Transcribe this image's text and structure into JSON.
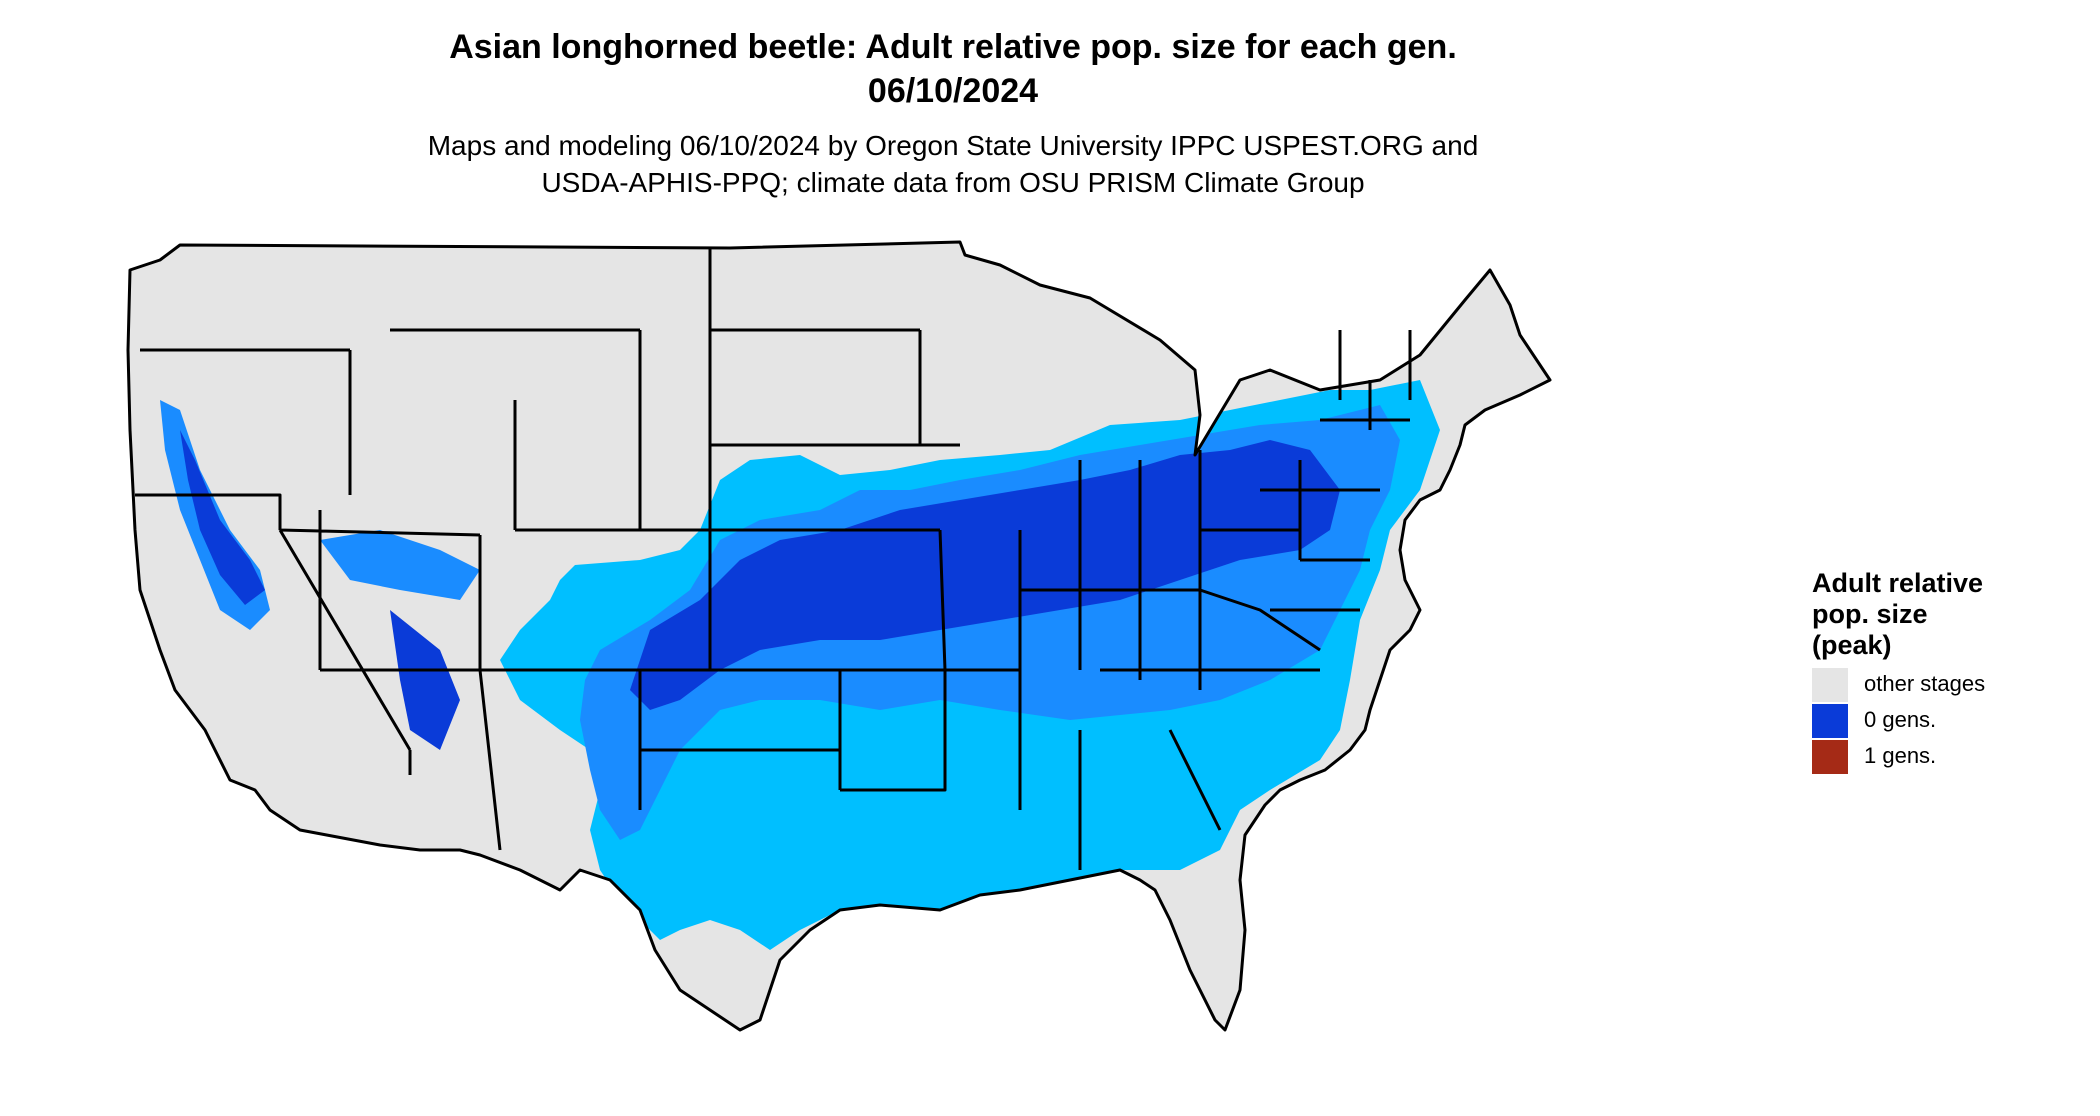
{
  "title": {
    "line1": "Asian longhorned beetle: Adult relative pop. size for each gen.",
    "line2": "06/10/2024"
  },
  "subtitle": {
    "line1": "Maps and modeling 06/10/2024 by Oregon State University IPPC USPEST.ORG and",
    "line2": "USDA-APHIS-PPQ; climate data from OSU PRISM Climate Group"
  },
  "legend": {
    "title_lines": [
      "Adult relative",
      "pop. size",
      "(peak)"
    ],
    "items": [
      {
        "label": "other stages",
        "color": "#e5e5e5"
      },
      {
        "label": "0 gens.",
        "color": "#0a3bd8"
      },
      {
        "label": "1 gens.",
        "color": "#a52a16"
      }
    ]
  },
  "map_colors": {
    "background": "#e5e5e5",
    "low": "#00bfff",
    "mid": "#1a8cff",
    "high": "#0a3bd8",
    "border": "#000000"
  }
}
